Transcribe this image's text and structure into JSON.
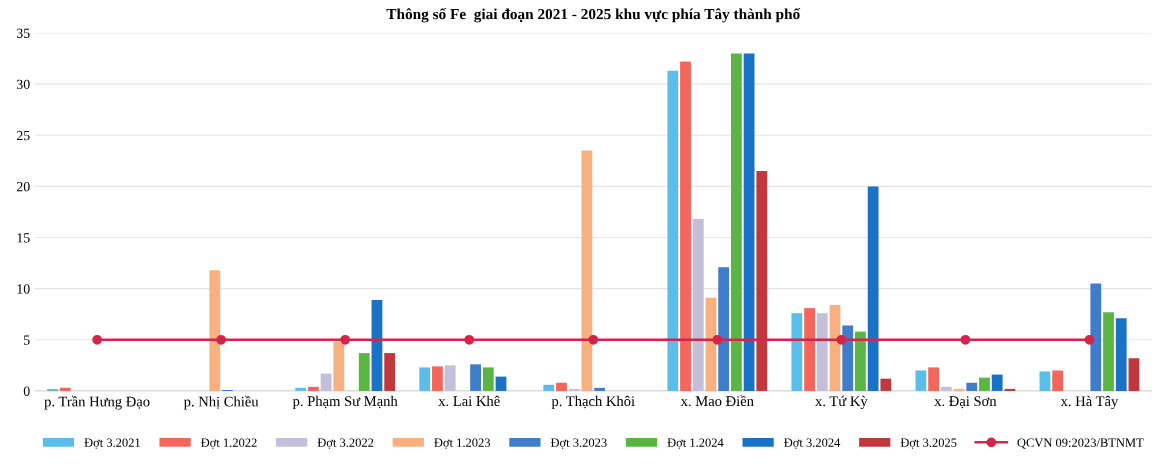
{
  "chart_data": {
    "type": "bar",
    "title": "Thông số Fe  giai đoạn 2021 - 2025 khu vực phía Tây thành phố",
    "categories": [
      "p. Trần Hưng Đạo",
      "p. Nhị Chiều",
      "p. Phạm Sư Mạnh",
      "x. Lai Khê",
      "p. Thạch Khôi",
      "x. Mao Điền",
      "x. Tứ Kỳ",
      "x. Đại Sơn",
      "x. Hà Tây"
    ],
    "series": [
      {
        "name": "Đợt 3.2021",
        "color": "#5bbde8",
        "values": [
          0.2,
          0,
          0.3,
          2.3,
          0.6,
          31.3,
          7.6,
          2.0,
          1.9
        ]
      },
      {
        "name": "Đợt 1.2022",
        "color": "#f4665c",
        "values": [
          0.3,
          0,
          0.4,
          2.4,
          0.8,
          32.2,
          8.1,
          2.3,
          2.0
        ]
      },
      {
        "name": "Đợt 3.2022",
        "color": "#c3bfd8",
        "values": [
          0,
          0,
          1.7,
          2.5,
          0.2,
          16.8,
          7.6,
          0.4,
          0
        ]
      },
      {
        "name": "Đợt 1.2023",
        "color": "#f9b07f",
        "values": [
          0,
          11.8,
          4.8,
          0,
          23.5,
          9.1,
          8.4,
          0.2,
          0
        ]
      },
      {
        "name": "Đợt 3.2023",
        "color": "#3f7cc9",
        "values": [
          0,
          0.1,
          0,
          2.6,
          0.3,
          12.1,
          6.4,
          0.8,
          10.5
        ]
      },
      {
        "name": "Đợt 1.2024",
        "color": "#5ab543",
        "values": [
          0,
          0,
          3.7,
          2.3,
          0,
          33.0,
          5.8,
          1.3,
          7.7
        ]
      },
      {
        "name": "Đợt 3.2024",
        "color": "#1a72c6",
        "values": [
          0,
          0,
          8.9,
          1.4,
          0,
          33.0,
          20.0,
          1.6,
          7.1
        ]
      },
      {
        "name": "Đợt 3.2025",
        "color": "#c0373c",
        "values": [
          0,
          0,
          3.7,
          0,
          0,
          21.5,
          1.2,
          0.2,
          3.2
        ]
      },
      {
        "name": "QCVN 09:2023/BTNMT",
        "type": "line",
        "color": "#d4244a",
        "marker": "circle",
        "values": [
          5,
          5,
          5,
          5,
          5,
          5,
          5,
          5,
          5
        ]
      }
    ],
    "ylim": [
      0,
      35
    ],
    "yticks": [
      0,
      5,
      10,
      15,
      20,
      25,
      30,
      35
    ],
    "grid": "y",
    "legend": "bottom"
  }
}
